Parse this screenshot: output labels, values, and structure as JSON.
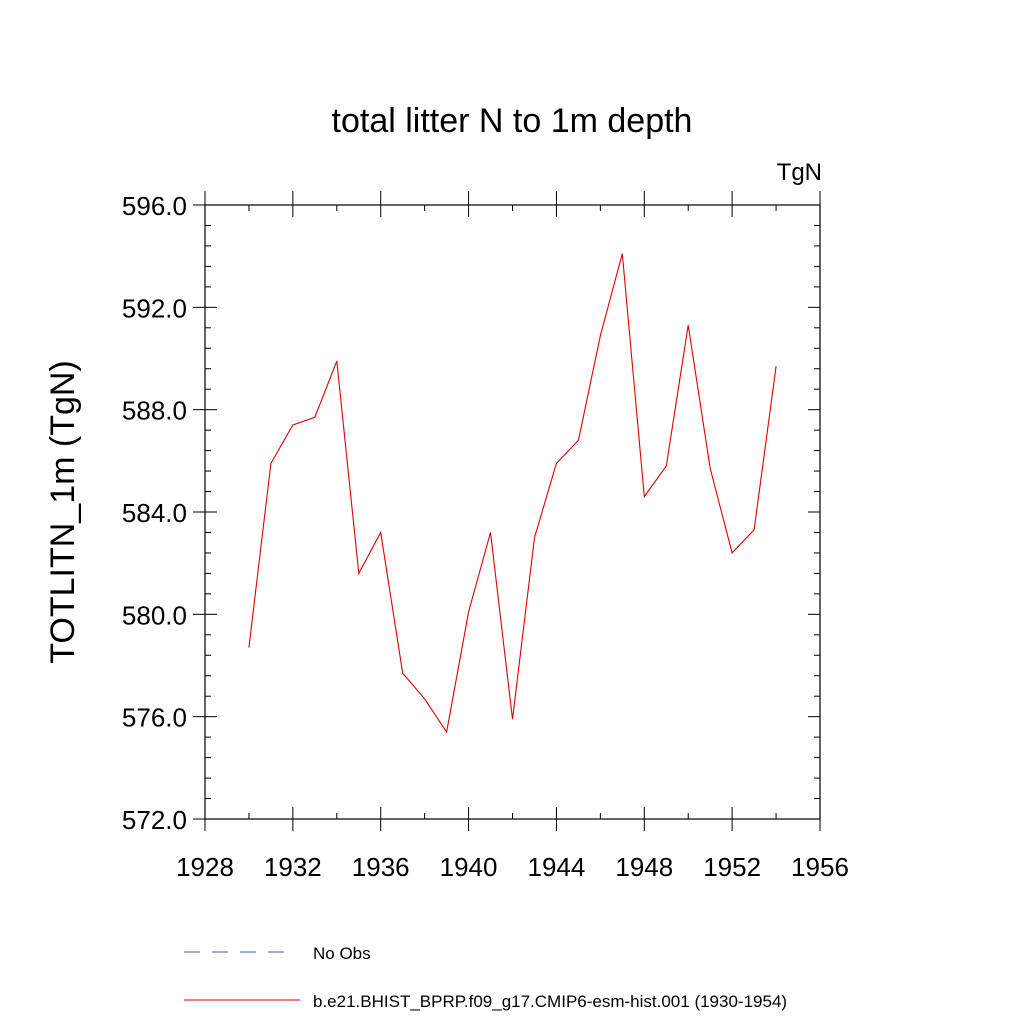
{
  "chart_data": {
    "type": "line",
    "title": "total litter N to 1m depth",
    "units_label": "TgN",
    "ylabel": "TOTLITN_1m  (TgN)",
    "xlabel": "",
    "xlim": [
      1928,
      1956
    ],
    "ylim": [
      572,
      596
    ],
    "x_ticks": [
      1928,
      1932,
      1936,
      1940,
      1944,
      1948,
      1952,
      1956
    ],
    "x_tick_labels": [
      "1928",
      "1932",
      "1936",
      "1940",
      "1944",
      "1948",
      "1952",
      "1956"
    ],
    "y_ticks": [
      572,
      576,
      580,
      584,
      588,
      592,
      596
    ],
    "y_tick_labels": [
      "572.0",
      "576.0",
      "580.0",
      "584.0",
      "588.0",
      "592.0",
      "596.0"
    ],
    "grid": false,
    "legend_position": "bottom",
    "series": [
      {
        "name": "No Obs",
        "color": "#5050d0",
        "dash": "dashed",
        "x": [],
        "values": []
      },
      {
        "name": "b.e21.BHIST_BPRP.f09_g17.CMIP6-esm-hist.001 (1930-1954)",
        "color": "#e00000",
        "dash": "solid",
        "x": [
          1930,
          1931,
          1932,
          1933,
          1934,
          1935,
          1936,
          1937,
          1938,
          1939,
          1940,
          1941,
          1942,
          1943,
          1944,
          1945,
          1946,
          1947,
          1948,
          1949,
          1950,
          1951,
          1952,
          1953,
          1954
        ],
        "values": [
          578.7,
          585.9,
          587.4,
          587.7,
          589.9,
          581.6,
          583.2,
          577.7,
          576.7,
          575.4,
          580.1,
          583.2,
          575.9,
          583.0,
          585.9,
          586.8,
          590.9,
          594.1,
          584.6,
          585.8,
          591.3,
          585.7,
          582.4,
          583.3,
          589.7
        ]
      }
    ]
  }
}
